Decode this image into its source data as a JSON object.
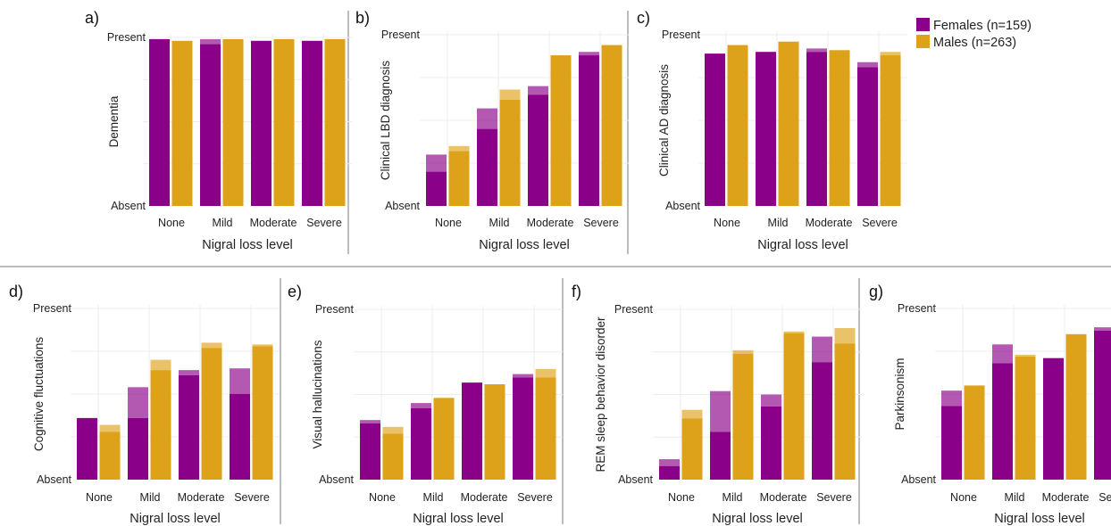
{
  "colors": {
    "female": "#8a0089",
    "male": "#dda21a",
    "grid": "#ececec",
    "separator": "#7a7a7a"
  },
  "legend": [
    {
      "name": "Females (n=159)",
      "color": "#8a0089"
    },
    {
      "name": "Males (n=263)",
      "color": "#dda21a"
    }
  ],
  "chart_data": [
    {
      "panel": "a)",
      "type": "bar",
      "ylabel": "Dementia",
      "xlabel": "Nigral loss level",
      "ytick_top": "Present",
      "ytick_bottom": "Absent",
      "ylim": [
        0,
        1
      ],
      "categories": [
        "None",
        "Mild",
        "Moderate",
        "Severe"
      ],
      "series": [
        {
          "name": "Females (n=159)",
          "values": [
            0.99,
            0.96,
            0.98,
            0.98
          ],
          "upper": [
            0.99,
            0.99,
            0.98,
            0.98
          ]
        },
        {
          "name": "Males (n=263)",
          "values": [
            0.98,
            0.99,
            0.99,
            0.99
          ],
          "upper": [
            0.98,
            0.99,
            0.99,
            0.99
          ]
        }
      ]
    },
    {
      "panel": "b)",
      "type": "bar",
      "ylabel": "Clinical LBD diagnosis",
      "xlabel": "Nigral loss level",
      "ytick_top": "Present",
      "ytick_bottom": "Absent",
      "ylim": [
        0,
        1
      ],
      "categories": [
        "None",
        "Mild",
        "Moderate",
        "Severe"
      ],
      "series": [
        {
          "name": "Females (n=159)",
          "values": [
            0.2,
            0.45,
            0.65,
            0.88
          ],
          "upper": [
            0.3,
            0.57,
            0.7,
            0.9
          ]
        },
        {
          "name": "Males (n=263)",
          "values": [
            0.32,
            0.62,
            0.88,
            0.94
          ],
          "upper": [
            0.35,
            0.68,
            0.88,
            0.94
          ]
        }
      ]
    },
    {
      "panel": "c)",
      "type": "bar",
      "ylabel": "Clinical AD diagnosis",
      "xlabel": "Nigral loss level",
      "ytick_top": "Present",
      "ytick_bottom": "Absent",
      "ylim": [
        0,
        1
      ],
      "categories": [
        "None",
        "Mild",
        "Moderate",
        "Severe"
      ],
      "series": [
        {
          "name": "Females (n=159)",
          "values": [
            0.89,
            0.9,
            0.9,
            0.81
          ],
          "upper": [
            0.89,
            0.9,
            0.92,
            0.84
          ]
        },
        {
          "name": "Males (n=263)",
          "values": [
            0.94,
            0.96,
            0.91,
            0.88
          ],
          "upper": [
            0.94,
            0.96,
            0.91,
            0.9
          ]
        }
      ]
    },
    {
      "panel": "d)",
      "type": "bar",
      "ylabel": "Cognitive fluctuations",
      "xlabel": "Nigral loss level",
      "ytick_top": "Present",
      "ytick_bottom": "Absent",
      "ylim": [
        0,
        1
      ],
      "categories": [
        "None",
        "Mild",
        "Moderate",
        "Severe"
      ],
      "series": [
        {
          "name": "Females (n=159)",
          "values": [
            0.36,
            0.36,
            0.61,
            0.5
          ],
          "upper": [
            0.36,
            0.54,
            0.64,
            0.65
          ]
        },
        {
          "name": "Males (n=263)",
          "values": [
            0.28,
            0.64,
            0.77,
            0.78
          ],
          "upper": [
            0.32,
            0.7,
            0.8,
            0.79
          ]
        }
      ]
    },
    {
      "panel": "e)",
      "type": "bar",
      "ylabel": "Visual hallucinations",
      "xlabel": "Nigral loss level",
      "ytick_top": "Present",
      "ytick_bottom": "Absent",
      "ylim": [
        0,
        1
      ],
      "categories": [
        "None",
        "Mild",
        "Moderate",
        "Severe"
      ],
      "series": [
        {
          "name": "Females (n=159)",
          "values": [
            0.33,
            0.42,
            0.57,
            0.6
          ],
          "upper": [
            0.35,
            0.45,
            0.57,
            0.62
          ]
        },
        {
          "name": "Males (n=263)",
          "values": [
            0.27,
            0.48,
            0.56,
            0.6
          ],
          "upper": [
            0.31,
            0.48,
            0.56,
            0.65
          ]
        }
      ]
    },
    {
      "panel": "f)",
      "type": "bar",
      "ylabel": "REM sleep behavior disorder",
      "xlabel": "Nigral loss level",
      "ytick_top": "Present",
      "ytick_bottom": "Absent",
      "ylim": [
        0,
        1
      ],
      "categories": [
        "None",
        "Mild",
        "Moderate",
        "Severe"
      ],
      "series": [
        {
          "name": "Females (n=159)",
          "values": [
            0.08,
            0.28,
            0.43,
            0.69
          ],
          "upper": [
            0.12,
            0.52,
            0.5,
            0.84
          ]
        },
        {
          "name": "Males (n=263)",
          "values": [
            0.36,
            0.74,
            0.86,
            0.8
          ],
          "upper": [
            0.41,
            0.76,
            0.87,
            0.89
          ]
        }
      ]
    },
    {
      "panel": "g)",
      "type": "bar",
      "ylabel": "Parkinsonism",
      "xlabel": "Nigral loss level",
      "ytick_top": "Present",
      "ytick_bottom": "Absent",
      "ylim": [
        0,
        1
      ],
      "categories": [
        "None",
        "Mild",
        "Moderate",
        "Severe"
      ],
      "series": [
        {
          "name": "Females (n=159)",
          "values": [
            0.43,
            0.68,
            0.71,
            0.87
          ],
          "upper": [
            0.52,
            0.79,
            0.71,
            0.89
          ]
        },
        {
          "name": "Males (n=263)",
          "values": [
            0.55,
            0.72,
            0.85,
            0.94
          ],
          "upper": [
            0.55,
            0.73,
            0.85,
            0.94
          ]
        }
      ]
    }
  ]
}
